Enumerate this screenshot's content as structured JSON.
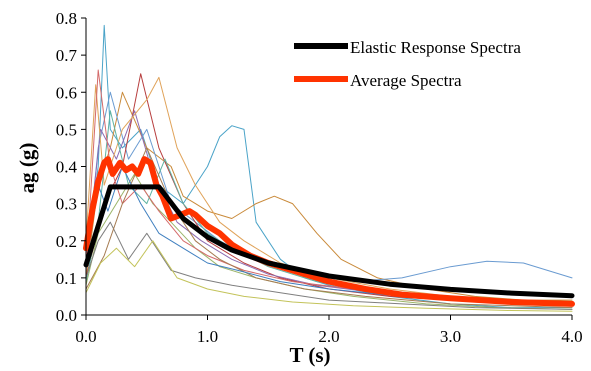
{
  "chart_data": {
    "type": "line",
    "xlabel": "T (s)",
    "ylabel": "ag (g)",
    "xlim": [
      0,
      4.0
    ],
    "ylim": [
      0,
      0.8
    ],
    "x_ticks": [
      "0.0",
      "1.0",
      "2.0",
      "3.0",
      "4.0"
    ],
    "y_ticks": [
      "0.0",
      "0.1",
      "0.2",
      "0.3",
      "0.4",
      "0.5",
      "0.6",
      "0.7",
      "0.8"
    ],
    "grid": false,
    "legend_position": "top-right",
    "legend": [
      {
        "label": "Elastic Response Spectra",
        "color": "#000000"
      },
      {
        "label": "Average Spectra",
        "color": "#ff3300"
      }
    ],
    "series": [
      {
        "name": "Elastic Response Spectra",
        "color": "#000000",
        "x": [
          0.0,
          0.2,
          0.6,
          0.8,
          1.0,
          1.2,
          1.5,
          2.0,
          2.5,
          3.0,
          3.5,
          4.0
        ],
        "y": [
          0.135,
          0.345,
          0.345,
          0.26,
          0.21,
          0.175,
          0.14,
          0.105,
          0.083,
          0.069,
          0.059,
          0.052
        ]
      },
      {
        "name": "Average Spectra",
        "color": "#ff3300",
        "x": [
          0.0,
          0.05,
          0.1,
          0.15,
          0.18,
          0.22,
          0.28,
          0.33,
          0.38,
          0.43,
          0.48,
          0.53,
          0.58,
          0.63,
          0.7,
          0.78,
          0.85,
          0.9,
          1.0,
          1.1,
          1.2,
          1.35,
          1.5,
          1.7,
          2.0,
          2.3,
          2.6,
          3.0,
          3.5,
          4.0
        ],
        "y": [
          0.18,
          0.28,
          0.36,
          0.41,
          0.42,
          0.38,
          0.41,
          0.39,
          0.4,
          0.38,
          0.42,
          0.41,
          0.35,
          0.32,
          0.26,
          0.27,
          0.28,
          0.27,
          0.24,
          0.22,
          0.19,
          0.16,
          0.14,
          0.12,
          0.09,
          0.07,
          0.055,
          0.045,
          0.035,
          0.03
        ]
      },
      {
        "color": "#4aa3c8",
        "x": [
          0.0,
          0.1,
          0.15,
          0.2,
          0.3,
          0.45,
          0.6,
          0.8,
          1.0,
          1.1,
          1.2,
          1.3,
          1.4,
          1.6,
          1.8,
          2.0,
          2.5,
          3.0,
          3.5,
          4.0
        ],
        "y": [
          0.15,
          0.4,
          0.78,
          0.5,
          0.45,
          0.5,
          0.35,
          0.3,
          0.4,
          0.48,
          0.51,
          0.5,
          0.25,
          0.15,
          0.1,
          0.08,
          0.05,
          0.03,
          0.02,
          0.02
        ]
      },
      {
        "color": "#c98a3a",
        "x": [
          0.0,
          0.1,
          0.2,
          0.3,
          0.5,
          0.7,
          0.8,
          0.9,
          1.0,
          1.2,
          1.4,
          1.55,
          1.7,
          1.9,
          2.1,
          2.4,
          2.8,
          3.2,
          3.6,
          4.0
        ],
        "y": [
          0.1,
          0.35,
          0.45,
          0.6,
          0.45,
          0.4,
          0.32,
          0.3,
          0.28,
          0.26,
          0.3,
          0.32,
          0.3,
          0.22,
          0.15,
          0.1,
          0.07,
          0.05,
          0.04,
          0.04
        ]
      },
      {
        "color": "#6a9bd1",
        "x": [
          0.0,
          0.1,
          0.2,
          0.35,
          0.5,
          0.7,
          0.9,
          1.1,
          1.4,
          1.8,
          2.2,
          2.6,
          3.0,
          3.3,
          3.6,
          4.0
        ],
        "y": [
          0.12,
          0.45,
          0.6,
          0.42,
          0.5,
          0.3,
          0.25,
          0.2,
          0.15,
          0.11,
          0.09,
          0.1,
          0.13,
          0.145,
          0.14,
          0.1
        ]
      },
      {
        "color": "#b73d3d",
        "x": [
          0.0,
          0.15,
          0.3,
          0.45,
          0.6,
          0.8,
          1.0,
          1.3,
          1.6,
          2.0,
          2.5,
          3.0,
          3.5,
          4.0
        ],
        "y": [
          0.1,
          0.3,
          0.4,
          0.65,
          0.45,
          0.3,
          0.2,
          0.14,
          0.1,
          0.07,
          0.05,
          0.04,
          0.03,
          0.025
        ]
      },
      {
        "color": "#9bb56a",
        "x": [
          0.0,
          0.1,
          0.25,
          0.4,
          0.55,
          0.7,
          0.9,
          1.1,
          1.4,
          1.8,
          2.2,
          2.8,
          3.4,
          4.0
        ],
        "y": [
          0.08,
          0.22,
          0.3,
          0.38,
          0.3,
          0.25,
          0.18,
          0.13,
          0.1,
          0.07,
          0.05,
          0.03,
          0.02,
          0.015
        ]
      },
      {
        "color": "#8c6bb1",
        "x": [
          0.0,
          0.12,
          0.25,
          0.4,
          0.55,
          0.75,
          0.95,
          1.2,
          1.5,
          1.9,
          2.4,
          3.0,
          3.5,
          4.0
        ],
        "y": [
          0.14,
          0.5,
          0.42,
          0.55,
          0.38,
          0.25,
          0.2,
          0.15,
          0.11,
          0.08,
          0.06,
          0.04,
          0.03,
          0.025
        ]
      },
      {
        "color": "#e0a35a",
        "x": [
          0.0,
          0.08,
          0.15,
          0.3,
          0.5,
          0.6,
          0.75,
          0.9,
          1.1,
          1.3,
          1.6,
          2.0,
          2.5,
          3.0,
          4.0
        ],
        "y": [
          0.2,
          0.62,
          0.35,
          0.5,
          0.58,
          0.64,
          0.45,
          0.35,
          0.25,
          0.2,
          0.14,
          0.1,
          0.07,
          0.05,
          0.03
        ]
      },
      {
        "color": "#5fb3a3",
        "x": [
          0.0,
          0.1,
          0.2,
          0.35,
          0.5,
          0.65,
          0.8,
          1.0,
          1.2,
          1.5,
          1.9,
          2.4,
          3.0,
          4.0
        ],
        "y": [
          0.09,
          0.25,
          0.55,
          0.35,
          0.3,
          0.42,
          0.3,
          0.22,
          0.18,
          0.13,
          0.09,
          0.06,
          0.04,
          0.03
        ]
      },
      {
        "color": "#d46a6a",
        "x": [
          0.0,
          0.1,
          0.2,
          0.3,
          0.45,
          0.6,
          0.8,
          1.0,
          1.3,
          1.7,
          2.2,
          2.8,
          3.4,
          4.0
        ],
        "y": [
          0.12,
          0.66,
          0.4,
          0.3,
          0.35,
          0.28,
          0.2,
          0.16,
          0.12,
          0.09,
          0.07,
          0.05,
          0.035,
          0.03
        ]
      },
      {
        "color": "#7f7f7f",
        "x": [
          0.0,
          0.1,
          0.2,
          0.35,
          0.5,
          0.7,
          0.9,
          1.2,
          1.6,
          2.0,
          2.6,
          3.2,
          4.0
        ],
        "y": [
          0.1,
          0.2,
          0.25,
          0.15,
          0.22,
          0.12,
          0.1,
          0.08,
          0.06,
          0.04,
          0.03,
          0.02,
          0.015
        ]
      },
      {
        "color": "#a67c52",
        "x": [
          0.0,
          0.15,
          0.3,
          0.5,
          0.7,
          0.9,
          1.1,
          1.4,
          1.8,
          2.3,
          3.0,
          4.0
        ],
        "y": [
          0.07,
          0.16,
          0.3,
          0.45,
          0.3,
          0.2,
          0.15,
          0.1,
          0.07,
          0.05,
          0.03,
          0.02
        ]
      },
      {
        "color": "#c3c35a",
        "x": [
          0.0,
          0.12,
          0.25,
          0.4,
          0.55,
          0.75,
          1.0,
          1.3,
          1.7,
          2.2,
          2.8,
          3.5,
          4.0
        ],
        "y": [
          0.06,
          0.14,
          0.18,
          0.13,
          0.2,
          0.1,
          0.07,
          0.05,
          0.035,
          0.025,
          0.018,
          0.012,
          0.01
        ]
      },
      {
        "color": "#3f7fbf",
        "x": [
          0.0,
          0.1,
          0.18,
          0.3,
          0.45,
          0.6,
          0.8,
          1.0,
          1.25,
          1.6,
          2.0,
          2.6,
          3.2,
          4.0
        ],
        "y": [
          0.13,
          0.35,
          0.28,
          0.4,
          0.3,
          0.22,
          0.18,
          0.14,
          0.12,
          0.09,
          0.07,
          0.05,
          0.035,
          0.03
        ]
      }
    ]
  }
}
